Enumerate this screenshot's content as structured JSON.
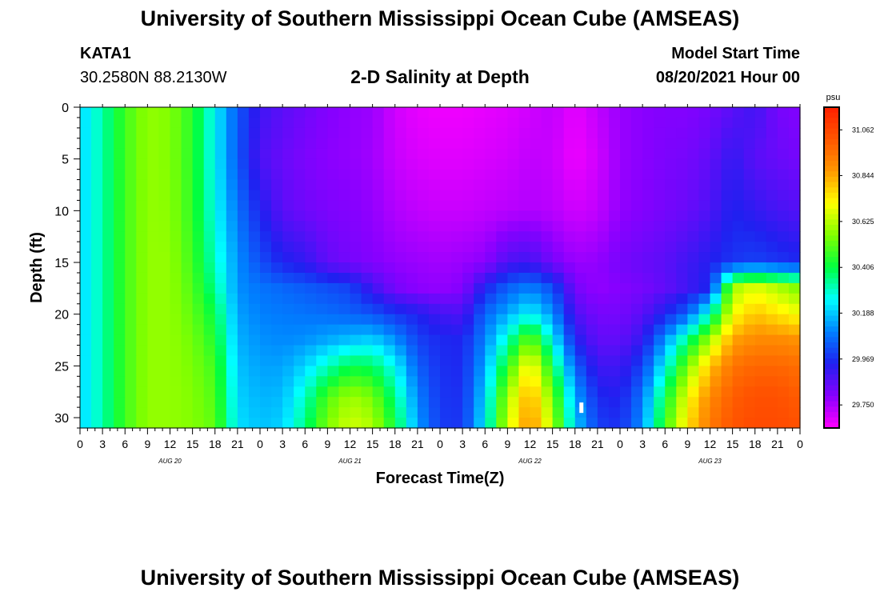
{
  "header": {
    "title": "University of Southern Mississippi Ocean Cube (AMSEAS)",
    "station": "KATA1",
    "coords": "30.2580N  88.2130W",
    "subtitle": "2-D Salinity at Depth",
    "start_label": "Model Start Time",
    "start_value": "08/20/2021 Hour 00"
  },
  "footer": {
    "title": "University of Southern Mississippi Ocean Cube (AMSEAS)"
  },
  "chart_data": {
    "type": "heatmap",
    "title": "2-D Salinity at Depth",
    "xlabel": "Forecast Time(Z)",
    "ylabel": "Depth (ft)",
    "y_ticks": [
      0,
      5,
      10,
      15,
      20,
      25,
      30
    ],
    "y_range": [
      0,
      31
    ],
    "x_range_hours": [
      0,
      96
    ],
    "x_tick_labels": [
      "0",
      "3",
      "6",
      "9",
      "12",
      "15",
      "18",
      "21",
      "0",
      "3",
      "6",
      "9",
      "12",
      "15",
      "18",
      "21",
      "0",
      "3",
      "6",
      "9",
      "12",
      "15",
      "18",
      "21",
      "0",
      "3",
      "6",
      "9",
      "12",
      "15",
      "18",
      "21",
      "0"
    ],
    "day_labels": [
      {
        "text": "AUG 20",
        "hour": 12
      },
      {
        "text": "AUG 21",
        "hour": 36
      },
      {
        "text": "AUG 22",
        "hour": 60
      },
      {
        "text": "AUG 23",
        "hour": 84
      }
    ],
    "colorbar": {
      "unit": "psu",
      "min": 29.64,
      "max": 31.17,
      "ticks": [
        31.062,
        30.844,
        30.625,
        30.406,
        30.188,
        29.969,
        29.75
      ],
      "tick_labels": [
        "31.062",
        "30.844",
        "30.625",
        "30.406",
        "30.188",
        "29.969",
        "29.750"
      ],
      "colors": [
        "#ff00ff",
        "#8800ff",
        "#2020f0",
        "#0080ff",
        "#00ffff",
        "#00ff40",
        "#80ff00",
        "#ffff00",
        "#ff9900",
        "#ff5500",
        "#ff2000"
      ]
    },
    "depth_rows": [
      0,
      5,
      10,
      15,
      17.5,
      20,
      22.5,
      25,
      28,
      31
    ],
    "time_cols": [
      0,
      3,
      6,
      9,
      12,
      15,
      18,
      21,
      24,
      27,
      30,
      33,
      36,
      39,
      42,
      45,
      48,
      51,
      54,
      57,
      60,
      63,
      66,
      69,
      72,
      75,
      78,
      81,
      84,
      87,
      90,
      93,
      96
    ],
    "salinity": [
      [
        30.2,
        30.32,
        30.48,
        30.58,
        30.56,
        30.45,
        30.24,
        30.04,
        29.9,
        29.86,
        29.83,
        29.8,
        29.78,
        29.77,
        29.7,
        29.67,
        29.66,
        29.66,
        29.67,
        29.68,
        29.7,
        29.72,
        29.67,
        29.72,
        29.77,
        29.79,
        29.8,
        29.8,
        29.82,
        29.86,
        29.9,
        29.82,
        29.8
      ],
      [
        30.2,
        30.32,
        30.48,
        30.58,
        30.56,
        30.45,
        30.24,
        30.04,
        29.88,
        29.84,
        29.81,
        29.79,
        29.78,
        29.76,
        29.71,
        29.69,
        29.68,
        29.68,
        29.69,
        29.7,
        29.72,
        29.71,
        29.66,
        29.7,
        29.77,
        29.79,
        29.81,
        29.82,
        29.85,
        29.92,
        29.86,
        29.84,
        29.82
      ],
      [
        30.2,
        30.32,
        30.48,
        30.58,
        30.57,
        30.46,
        30.26,
        30.08,
        29.95,
        29.86,
        29.83,
        29.81,
        29.8,
        29.78,
        29.74,
        29.72,
        29.71,
        29.71,
        29.72,
        29.73,
        29.74,
        29.73,
        29.7,
        29.72,
        29.78,
        29.8,
        29.82,
        29.84,
        29.88,
        29.95,
        29.92,
        29.89,
        29.87
      ],
      [
        30.2,
        30.32,
        30.48,
        30.58,
        30.58,
        30.48,
        30.3,
        30.12,
        30.02,
        29.95,
        29.92,
        29.85,
        29.82,
        29.8,
        29.78,
        29.77,
        29.76,
        29.77,
        29.79,
        29.88,
        29.9,
        29.82,
        29.77,
        29.78,
        29.82,
        29.84,
        29.86,
        29.9,
        29.94,
        29.98,
        30.0,
        29.98,
        29.96
      ],
      [
        30.2,
        30.32,
        30.48,
        30.58,
        30.58,
        30.5,
        30.34,
        30.12,
        30.08,
        30.06,
        30.04,
        30.02,
        30.0,
        29.9,
        29.82,
        29.79,
        29.78,
        29.8,
        29.95,
        30.05,
        30.1,
        30.02,
        29.82,
        29.78,
        29.8,
        29.82,
        29.85,
        29.9,
        29.96,
        30.6,
        30.68,
        30.62,
        30.55
      ],
      [
        30.2,
        30.32,
        30.48,
        30.58,
        30.58,
        30.52,
        30.4,
        30.14,
        30.1,
        30.09,
        30.08,
        30.07,
        30.05,
        30.03,
        29.98,
        29.95,
        29.9,
        29.88,
        30.06,
        30.15,
        30.25,
        30.12,
        29.88,
        29.82,
        29.82,
        29.86,
        29.95,
        30.05,
        30.3,
        30.7,
        30.8,
        30.75,
        30.7
      ],
      [
        30.2,
        30.32,
        30.48,
        30.58,
        30.58,
        30.54,
        30.44,
        30.16,
        30.12,
        30.11,
        30.12,
        30.15,
        30.18,
        30.2,
        30.12,
        30.0,
        29.96,
        29.95,
        30.1,
        30.3,
        30.55,
        30.25,
        29.95,
        29.85,
        29.85,
        29.92,
        30.12,
        30.35,
        30.6,
        30.85,
        30.9,
        30.9,
        30.88
      ],
      [
        30.2,
        30.32,
        30.48,
        30.58,
        30.58,
        30.55,
        30.48,
        30.18,
        30.14,
        30.14,
        30.2,
        30.3,
        30.4,
        30.38,
        30.25,
        30.05,
        29.97,
        29.96,
        30.15,
        30.45,
        30.75,
        30.4,
        30.05,
        29.9,
        29.9,
        30.0,
        30.25,
        30.55,
        30.8,
        30.95,
        30.98,
        30.98,
        30.96
      ],
      [
        30.2,
        30.32,
        30.48,
        30.58,
        30.58,
        30.56,
        30.5,
        30.2,
        30.16,
        30.17,
        30.3,
        30.5,
        30.6,
        30.55,
        30.35,
        30.1,
        29.98,
        29.97,
        30.2,
        30.6,
        30.85,
        30.55,
        30.15,
        29.96,
        29.94,
        30.08,
        30.4,
        30.7,
        30.9,
        31.0,
        31.03,
        31.03,
        31.0
      ],
      [
        30.2,
        30.32,
        30.48,
        30.58,
        30.58,
        30.56,
        30.52,
        30.22,
        30.18,
        30.2,
        30.36,
        30.56,
        30.66,
        30.62,
        30.42,
        30.14,
        29.99,
        29.98,
        30.24,
        30.65,
        30.9,
        30.62,
        30.2,
        30.0,
        29.97,
        30.12,
        30.48,
        30.76,
        30.94,
        31.02,
        31.05,
        31.05,
        31.03
      ]
    ],
    "marker": {
      "hour": 66.8,
      "depth": 29
    }
  }
}
